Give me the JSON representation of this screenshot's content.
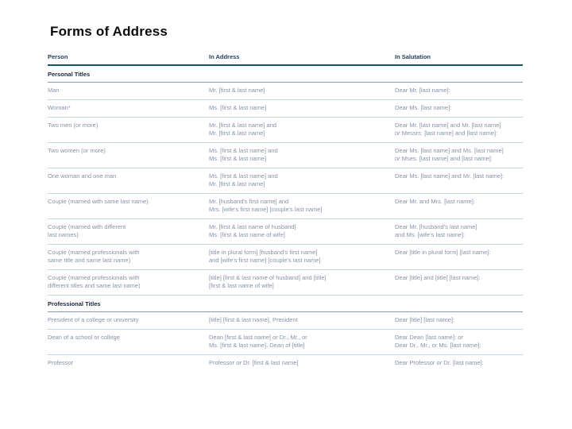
{
  "slide": {
    "title": "Forms of Address"
  },
  "table": {
    "columns": [
      "Person",
      "In Address",
      "In Salutation"
    ],
    "sections": [
      {
        "heading": "Personal Titles",
        "rows": [
          {
            "person": [
              "Man"
            ],
            "address": [
              "Mr. [first & last name]"
            ],
            "salutation": [
              "Dear Mr. [last name]:"
            ]
          },
          {
            "person": [
              "Woman*"
            ],
            "address": [
              "Ms. [first & last name]"
            ],
            "salutation": [
              "Dear Ms. [last name]:"
            ]
          },
          {
            "person": [
              "Two men (or more)"
            ],
            "address": [
              "Mr. [first & last name] and",
              "Mr. [first & last name]"
            ],
            "salutation": [
              "Dear Mr. [last name] and Mr. [last name]",
              "*or* Messrs. [last name] and [last name]:"
            ]
          },
          {
            "person": [
              "Two women (or more)"
            ],
            "address": [
              "Ms. [first & last name] and",
              "Ms. [first & last name]"
            ],
            "salutation": [
              "Dear Ms. [last name] and Ms. [last name]",
              "*or* Mses. [last name] and [last name]:"
            ]
          },
          {
            "person": [
              "One woman and one man"
            ],
            "address": [
              "Ms. [first & last name] and",
              "Mr. [first & last name]"
            ],
            "salutation": [
              "Dear Ms. [last name] and Mr. [last name]:"
            ]
          },
          {
            "person": [
              "Couple (married with same last name)"
            ],
            "address": [
              "Mr. [husband's first name] and",
              "Mrs. [wife's first name] [couple's last name]"
            ],
            "salutation": [
              "Dear Mr. and Mrs. [last name]:"
            ]
          },
          {
            "person": [
              "Couple (married with different",
              "last names)"
            ],
            "address": [
              "Mr. [first & last name of husband]",
              "Ms. [first & last name of wife]"
            ],
            "salutation": [
              "Dear Mr. [husband's last name]",
              "and Ms. [wife's last name]:"
            ]
          },
          {
            "person": [
              "Couple (married professionals with",
              "same title and same last name)"
            ],
            "address": [
              "[title in plural form] [husband's first name]",
              "and [wife's first name] [couple's last name]"
            ],
            "salutation": [
              "Dear [title in plural form] [last name]:"
            ]
          },
          {
            "person": [
              "Couple (married professionals with",
              "different titles and same last name)"
            ],
            "address": [
              "[title] [first & last name of husband] and [title]",
              "[first & last name of wife]"
            ],
            "salutation": [
              "Dear [title] and [title] [last name]:"
            ]
          }
        ]
      },
      {
        "heading": "Professional Titles",
        "rows": [
          {
            "person": [
              "President of a college or university"
            ],
            "address": [
              "[title] [first & last name], President"
            ],
            "salutation": [
              "Dear [title] [last name]:"
            ]
          },
          {
            "person": [
              "Dean of a school or college"
            ],
            "address": [
              "Dean [first & last name] *or* Dr., Mr., or",
              "Ms. [first & last name], Dean of [title]"
            ],
            "salutation": [
              "Dear Dean [last name]: *or*",
              "Dear Dr., Mr., or Ms. [last name]:"
            ]
          },
          {
            "person": [
              "Professor"
            ],
            "address": [
              "Professor *or* Dr. [first & last name]"
            ],
            "salutation": [
              "Dear Professor *or* Dr. [last name]:"
            ]
          }
        ]
      }
    ]
  },
  "colors": {
    "header_rule": "#175466",
    "section_rule": "#8e9aa4",
    "row_rule": "#c3d5e6",
    "header_text": "#1e3c5c",
    "section_text": "#16293e",
    "body_text": "#8593a9",
    "title_text": "#0b0b0b"
  }
}
